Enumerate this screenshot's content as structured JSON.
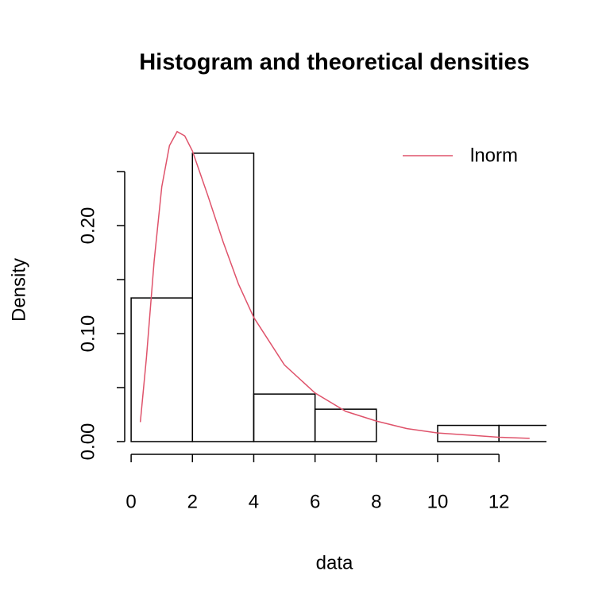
{
  "chart_data": {
    "type": "histogram",
    "title": "Histogram and theoretical densities",
    "xlabel": "data",
    "ylabel": "Density",
    "bins": [
      0,
      2,
      4,
      6,
      8,
      10,
      12,
      14
    ],
    "values": [
      0.133,
      0.267,
      0.044,
      0.03,
      0,
      0.015,
      0.015
    ],
    "color": "#000000",
    "curve": {
      "name": "lnorm",
      "color": "#DF536B",
      "x": [
        0.3,
        0.5,
        0.75,
        1,
        1.25,
        1.5,
        1.75,
        2,
        2.5,
        3,
        3.5,
        4,
        5,
        6,
        7,
        8,
        9,
        10,
        11,
        12,
        13
      ],
      "values": [
        0.018,
        0.078,
        0.167,
        0.236,
        0.274,
        0.287,
        0.283,
        0.269,
        0.228,
        0.185,
        0.146,
        0.115,
        0.071,
        0.045,
        0.028,
        0.019,
        0.012,
        0.008,
        0.006,
        0.004,
        0.003
      ]
    },
    "xlim": [
      -0.21,
      13.55
    ],
    "ylim": [
      -0.0118,
      0.2912
    ],
    "xticks": [
      0,
      2,
      4,
      6,
      8,
      10,
      12
    ],
    "yticks": [
      {
        "value": 0,
        "label": "0.00"
      },
      {
        "value": 0.1,
        "label": "0.10"
      },
      {
        "value": 0.2,
        "label": "0.20"
      }
    ],
    "yminor_ticks": [
      0.05,
      0.15,
      0.25
    ],
    "legend": "topright"
  }
}
